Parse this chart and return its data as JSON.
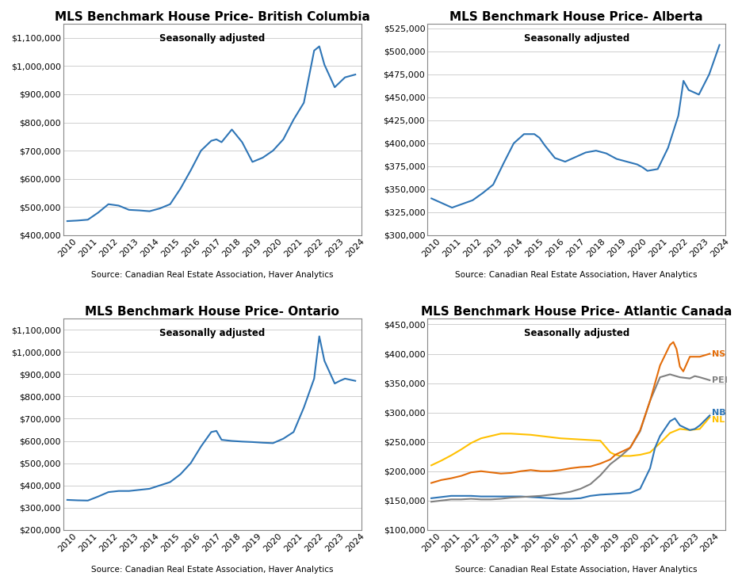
{
  "bc": {
    "title": "MLS Benchmark House Price- British Columbia",
    "subtitle": "Seasonally adjusted",
    "source": "Source: Canadian Real Estate Association, Haver Analytics",
    "color": "#2E75B6",
    "ylim": [
      400000,
      1150000
    ],
    "yticks": [
      400000,
      500000,
      600000,
      700000,
      800000,
      900000,
      1000000,
      1100000
    ],
    "years": [
      2010,
      2010.5,
      2011,
      2011.5,
      2012,
      2012.5,
      2013,
      2013.5,
      2014,
      2014.5,
      2015,
      2015.5,
      2016,
      2016.5,
      2017,
      2017.25,
      2017.5,
      2018,
      2018.5,
      2019,
      2019.5,
      2020,
      2020.5,
      2021,
      2021.5,
      2022,
      2022.25,
      2022.5,
      2023,
      2023.5,
      2024
    ],
    "values": [
      450000,
      452000,
      455000,
      480000,
      510000,
      505000,
      490000,
      488000,
      485000,
      495000,
      510000,
      565000,
      630000,
      700000,
      735000,
      740000,
      730000,
      775000,
      730000,
      660000,
      675000,
      700000,
      740000,
      810000,
      870000,
      1055000,
      1070000,
      1005000,
      925000,
      960000,
      970000
    ]
  },
  "ab": {
    "title": "MLS Benchmark House Price- Alberta",
    "subtitle": "Seasonally adjusted",
    "source": "Source: Canadian Real Estate Association, Haver Analytics",
    "color": "#2E75B6",
    "ylim": [
      300000,
      530000
    ],
    "yticks": [
      300000,
      325000,
      350000,
      375000,
      400000,
      425000,
      450000,
      475000,
      500000,
      525000
    ],
    "years": [
      2010,
      2010.5,
      2011,
      2011.5,
      2012,
      2012.5,
      2013,
      2013.5,
      2014,
      2014.5,
      2015,
      2015.25,
      2015.5,
      2016,
      2016.5,
      2017,
      2017.5,
      2018,
      2018.5,
      2019,
      2019.5,
      2020,
      2020.25,
      2020.5,
      2021,
      2021.5,
      2022,
      2022.25,
      2022.5,
      2023,
      2023.5,
      2024
    ],
    "values": [
      340000,
      335000,
      330000,
      334000,
      338000,
      346000,
      355000,
      378000,
      400000,
      410000,
      410000,
      406000,
      398000,
      384000,
      380000,
      385000,
      390000,
      392000,
      389000,
      383000,
      380000,
      377000,
      374000,
      370000,
      372000,
      395000,
      430000,
      468000,
      458000,
      453000,
      475000,
      507000
    ]
  },
  "on": {
    "title": "MLS Benchmark House Price- Ontario",
    "subtitle": "Seasonally adjusted",
    "source": "Source: Canadian Real Estate Association, Haver Analytics",
    "color": "#2E75B6",
    "ylim": [
      200000,
      1150000
    ],
    "yticks": [
      200000,
      300000,
      400000,
      500000,
      600000,
      700000,
      800000,
      900000,
      1000000,
      1100000
    ],
    "years": [
      2010,
      2010.5,
      2011,
      2011.5,
      2012,
      2012.5,
      2013,
      2013.5,
      2014,
      2014.5,
      2015,
      2015.5,
      2016,
      2016.5,
      2017,
      2017.25,
      2017.5,
      2018,
      2018.5,
      2019,
      2019.5,
      2020,
      2020.5,
      2021,
      2021.5,
      2022,
      2022.25,
      2022.5,
      2023,
      2023.25,
      2023.5,
      2024
    ],
    "values": [
      335000,
      333000,
      332000,
      350000,
      370000,
      375000,
      375000,
      380000,
      385000,
      400000,
      415000,
      450000,
      500000,
      575000,
      640000,
      645000,
      605000,
      600000,
      597000,
      595000,
      592000,
      590000,
      610000,
      640000,
      750000,
      880000,
      1070000,
      960000,
      858000,
      870000,
      880000,
      870000
    ]
  },
  "atl": {
    "title": "MLS Benchmark House Price- Atlantic Canada",
    "subtitle": "Seasonally adjusted",
    "source": "Source: Canadian Real Estate Association, Haver Analytics",
    "ylim": [
      100000,
      460000
    ],
    "yticks": [
      100000,
      150000,
      200000,
      250000,
      300000,
      350000,
      400000,
      450000
    ],
    "series": {
      "NS": {
        "color": "#E36C09",
        "years": [
          2010,
          2010.5,
          2011,
          2011.5,
          2012,
          2012.5,
          2013,
          2013.5,
          2014,
          2014.5,
          2015,
          2015.5,
          2016,
          2016.5,
          2017,
          2017.5,
          2018,
          2018.5,
          2019,
          2019.25,
          2019.5,
          2020,
          2020.5,
          2021,
          2021.5,
          2022,
          2022.17,
          2022.33,
          2022.5,
          2022.67,
          2023,
          2023.5,
          2024
        ],
        "values": [
          180000,
          185000,
          188000,
          192000,
          198000,
          200000,
          198000,
          196000,
          197000,
          200000,
          202000,
          200000,
          200000,
          202000,
          205000,
          207000,
          208000,
          213000,
          220000,
          228000,
          232000,
          240000,
          270000,
          320000,
          380000,
          415000,
          420000,
          408000,
          378000,
          370000,
          395000,
          395000,
          400000
        ]
      },
      "PEI": {
        "color": "#808080",
        "years": [
          2010,
          2010.5,
          2011,
          2011.5,
          2012,
          2012.5,
          2013,
          2013.5,
          2014,
          2014.5,
          2015,
          2015.5,
          2016,
          2016.5,
          2017,
          2017.5,
          2018,
          2018.5,
          2019,
          2019.5,
          2020,
          2020.5,
          2021,
          2021.5,
          2022,
          2022.5,
          2023,
          2023.25,
          2023.5,
          2024
        ],
        "values": [
          148000,
          150000,
          152000,
          152000,
          153000,
          152000,
          152000,
          153000,
          155000,
          156000,
          157000,
          158000,
          160000,
          162000,
          165000,
          170000,
          178000,
          193000,
          212000,
          225000,
          240000,
          268000,
          320000,
          360000,
          365000,
          360000,
          358000,
          362000,
          360000,
          355000
        ]
      },
      "NB": {
        "color": "#2E75B6",
        "years": [
          2010,
          2010.5,
          2011,
          2011.5,
          2012,
          2012.5,
          2013,
          2013.5,
          2014,
          2014.5,
          2015,
          2015.5,
          2016,
          2016.5,
          2017,
          2017.5,
          2018,
          2018.5,
          2019,
          2019.5,
          2020,
          2020.5,
          2021,
          2021.25,
          2021.5,
          2022,
          2022.25,
          2022.5,
          2023,
          2023.25,
          2023.5,
          2024
        ],
        "values": [
          154000,
          156000,
          158000,
          158000,
          158000,
          157000,
          157000,
          157000,
          157000,
          157000,
          156000,
          155000,
          154000,
          153000,
          153000,
          154000,
          158000,
          160000,
          161000,
          162000,
          163000,
          170000,
          205000,
          240000,
          260000,
          285000,
          290000,
          278000,
          270000,
          272000,
          278000,
          295000
        ]
      },
      "NL": {
        "color": "#FFC000",
        "years": [
          2010,
          2010.5,
          2011,
          2011.5,
          2012,
          2012.5,
          2013,
          2013.5,
          2014,
          2014.5,
          2015,
          2015.5,
          2016,
          2016.5,
          2017,
          2017.5,
          2018,
          2018.5,
          2019,
          2019.25,
          2019.5,
          2020,
          2020.5,
          2021,
          2021.5,
          2022,
          2022.5,
          2023,
          2023.5,
          2024
        ],
        "values": [
          210000,
          218000,
          227000,
          237000,
          248000,
          256000,
          260000,
          264000,
          264000,
          263000,
          262000,
          260000,
          258000,
          256000,
          255000,
          254000,
          253000,
          252000,
          232000,
          228000,
          226000,
          226000,
          228000,
          232000,
          248000,
          265000,
          272000,
          270000,
          272000,
          292000
        ]
      }
    }
  },
  "tick_label_size": 8,
  "source_fontsize": 7.5,
  "title_fontsize": 11,
  "subtitle_fontsize": 8.5,
  "line_width": 1.5,
  "grid_color": "#c8c8c8",
  "spine_color": "#888888"
}
